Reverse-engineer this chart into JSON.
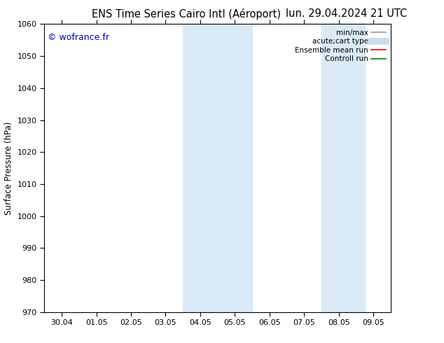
{
  "title_left": "ENS Time Series Cairo Intl (Aéroport)",
  "title_right": "lun. 29.04.2024 21 UTC",
  "ylabel": "Surface Pressure (hPa)",
  "ylim": [
    970,
    1060
  ],
  "yticks": [
    970,
    980,
    990,
    1000,
    1010,
    1020,
    1030,
    1040,
    1050,
    1060
  ],
  "xtick_labels": [
    "30.04",
    "01.05",
    "02.05",
    "03.05",
    "04.05",
    "05.05",
    "06.05",
    "07.05",
    "08.05",
    "09.05"
  ],
  "xtick_positions": [
    0,
    1,
    2,
    3,
    4,
    5,
    6,
    7,
    8,
    9
  ],
  "xlim": [
    -0.5,
    9.5
  ],
  "shaded_regions": [
    {
      "x_start": 3.5,
      "x_end": 5.5,
      "color": "#daeaf7"
    },
    {
      "x_start": 7.5,
      "x_end": 8.75,
      "color": "#daeaf7"
    }
  ],
  "watermark_text": "© wofrance.fr",
  "watermark_color": "#0000bb",
  "background_color": "#ffffff",
  "plot_bg_color": "#ffffff",
  "legend_items": [
    {
      "label": "min/max",
      "color": "#999999",
      "lw": 1.2
    },
    {
      "label": "acute;cart type",
      "color": "#c8dff0",
      "lw": 7
    },
    {
      "label": "Ensemble mean run",
      "color": "#ff0000",
      "lw": 1.2
    },
    {
      "label": "Controll run",
      "color": "#008800",
      "lw": 1.2
    }
  ],
  "title_fontsize": 10.5,
  "tick_fontsize": 8,
  "ylabel_fontsize": 8.5,
  "legend_fontsize": 7.5
}
